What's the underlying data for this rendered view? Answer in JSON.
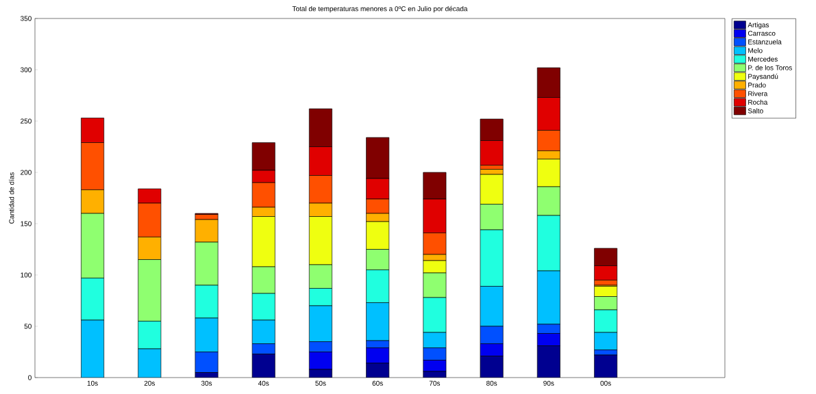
{
  "chart_data": {
    "type": "bar",
    "stacked": true,
    "title": "Total de temperaturas menores a 0ºC en Julio por década",
    "ylabel": "Cantidad de días",
    "categories": [
      "10s",
      "20s",
      "30s",
      "40s",
      "50s",
      "60s",
      "70s",
      "80s",
      "90s",
      "00s"
    ],
    "ylim": [
      0,
      350
    ],
    "yticks": [
      0,
      50,
      100,
      150,
      200,
      250,
      300,
      350
    ],
    "grid": false,
    "legend": "right",
    "series": [
      {
        "name": "Artigas",
        "color": "#000090",
        "values": [
          0,
          0,
          5,
          23,
          8,
          14,
          6,
          21,
          31,
          22
        ]
      },
      {
        "name": "Carrasco",
        "color": "#0000f0",
        "values": [
          0,
          0,
          0,
          0,
          17,
          15,
          11,
          12,
          12,
          0
        ]
      },
      {
        "name": "Estanzuela",
        "color": "#0050ff",
        "values": [
          0,
          0,
          20,
          10,
          10,
          7,
          12,
          17,
          9,
          5
        ]
      },
      {
        "name": "Melo",
        "color": "#00c0ff",
        "values": [
          56,
          28,
          33,
          23,
          35,
          37,
          15,
          39,
          52,
          17
        ]
      },
      {
        "name": "Mercedes",
        "color": "#20ffdf",
        "values": [
          41,
          27,
          32,
          26,
          17,
          32,
          34,
          55,
          54,
          22
        ]
      },
      {
        "name": "P. de los Toros",
        "color": "#8fff70",
        "values": [
          63,
          60,
          42,
          26,
          23,
          20,
          24,
          25,
          28,
          13
        ]
      },
      {
        "name": "Paysandú",
        "color": "#efff10",
        "values": [
          0,
          0,
          0,
          49,
          47,
          27,
          12,
          29,
          27,
          10
        ]
      },
      {
        "name": "Prado",
        "color": "#ffb000",
        "values": [
          23,
          22,
          22,
          9,
          13,
          8,
          6,
          5,
          8,
          1
        ]
      },
      {
        "name": "Rivera",
        "color": "#ff5000",
        "values": [
          46,
          33,
          5,
          24,
          27,
          14,
          21,
          4,
          20,
          5
        ]
      },
      {
        "name": "Rocha",
        "color": "#e00000",
        "values": [
          24,
          14,
          null,
          12,
          28,
          20,
          33,
          24,
          32,
          14
        ]
      },
      {
        "name": "Salto",
        "color": "#800000",
        "values": [
          0,
          0,
          1,
          27,
          37,
          40,
          26,
          21,
          29,
          17
        ]
      }
    ]
  }
}
